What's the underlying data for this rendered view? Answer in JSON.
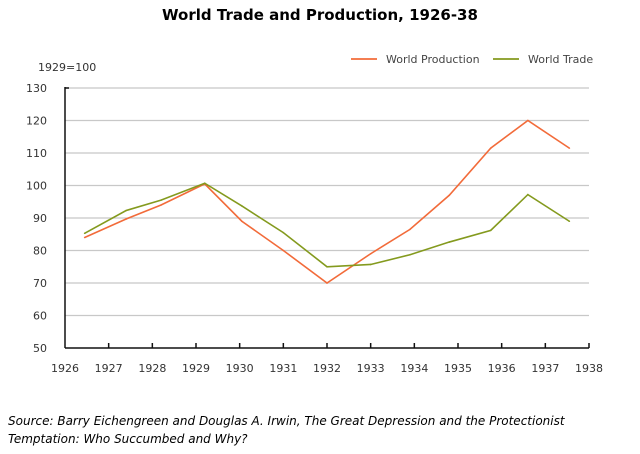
{
  "chart_data": {
    "type": "line",
    "title": "World Trade and Production, 1926-38",
    "ylabel": "1929=100",
    "xlabel": "",
    "xlim": [
      1926,
      1938
    ],
    "ylim": [
      50,
      130
    ],
    "xticks": [
      1926,
      1927,
      1928,
      1929,
      1930,
      1931,
      1932,
      1933,
      1934,
      1935,
      1936,
      1937,
      1938
    ],
    "yticks": [
      50,
      60,
      70,
      80,
      90,
      100,
      110,
      120,
      130
    ],
    "grid": "horizontal",
    "legend": "top-right",
    "series": [
      {
        "name": "World Production",
        "color": "#f26b3a",
        "x": [
          1926.45,
          1927.4,
          1928.2,
          1929.2,
          1930.05,
          1931.0,
          1932.0,
          1933.0,
          1933.9,
          1934.8,
          1935.75,
          1936.6,
          1937.55
        ],
        "values": [
          84,
          89.7,
          94,
          100.5,
          89,
          80,
          70,
          79,
          86.5,
          97,
          111.5,
          120,
          111.5
        ]
      },
      {
        "name": "World Trade",
        "color": "#849a1e",
        "x": [
          1926.45,
          1927.4,
          1928.2,
          1929.2,
          1930.05,
          1931.0,
          1932.0,
          1933.0,
          1933.9,
          1934.8,
          1935.75,
          1936.6,
          1937.55
        ],
        "values": [
          85.3,
          92.3,
          95.5,
          100.7,
          93.7,
          85.5,
          75,
          75.7,
          78.7,
          82.6,
          86.2,
          97.2,
          89
        ]
      }
    ]
  },
  "source": "Source: Barry Eichengreen and Douglas A. Irwin, The Great Depression and the Protectionist Temptation: Who Succumbed and Why?"
}
